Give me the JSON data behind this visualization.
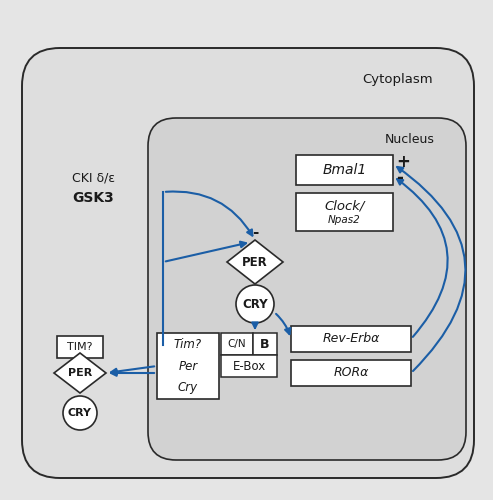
{
  "bg_color": "#e5e5e5",
  "cytoplasm_fill": "#dedede",
  "nucleus_fill": "#d2d2d2",
  "white": "#ffffff",
  "arrow_color": "#1b5ea6",
  "line_color": "#2a2a2a",
  "text_color": "#1a1a1a",
  "figsize": [
    4.93,
    5.0
  ],
  "dpi": 100,
  "xlim": [
    0,
    493
  ],
  "ylim": [
    0,
    500
  ],
  "cytoplasm_label": "Cytoplasm",
  "nucleus_label": "Nucleus",
  "cki_label": "CKI δ/ε",
  "gsk3_label": "GSK3",
  "bmal1_label": "Bmal1",
  "clock_label": "Clock/",
  "npas2_label": "Npas2",
  "per_label": "PER",
  "cry_label": "CRY",
  "cn_label": "C/N",
  "b_label": "B",
  "ebox_label": "E-Box",
  "tim_label": "TIM?",
  "tim_mrna_label": "Tim?",
  "per_mrna_label": "Per",
  "cry_mrna_label": "Cry",
  "reverb_label": "Rev-Erbα",
  "rora_label": "RORα",
  "plus_label": "+",
  "minus_label": "-"
}
